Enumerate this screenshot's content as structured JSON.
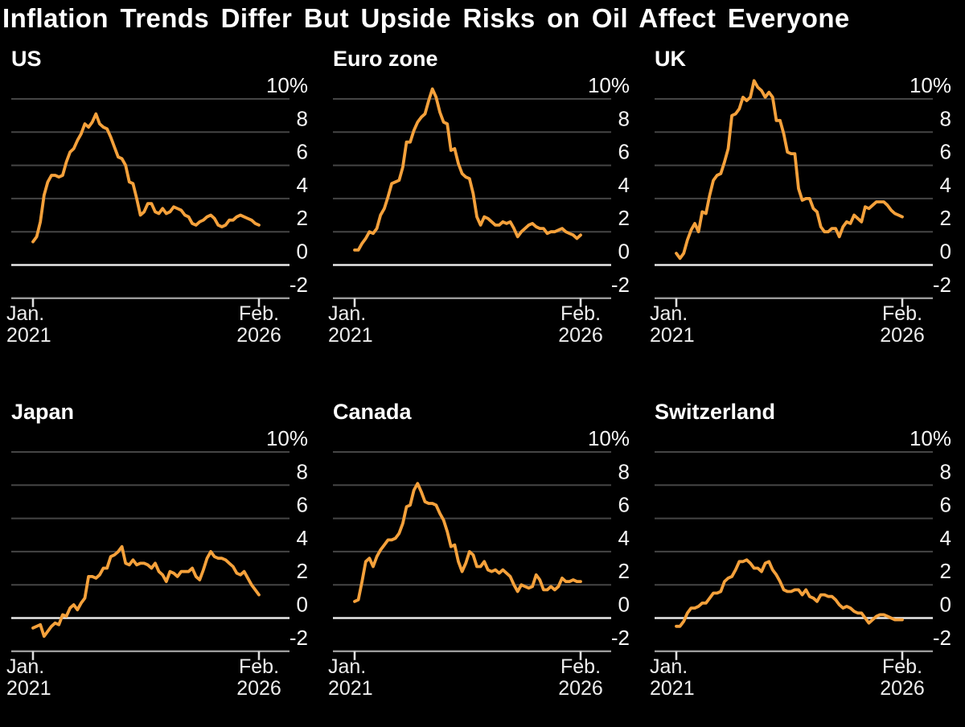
{
  "title": "Inflation Trends Differ But Upside Risks on Oil Affect Everyone",
  "colors": {
    "background": "#000000",
    "text": "#ffffff",
    "line": "#F5A13B",
    "grid": "#454545",
    "zero_line": "#e9e9e9",
    "axis_line": "#9b9b9b",
    "tick": "#e0e0e0"
  },
  "axis": {
    "y_labels": [
      "10%",
      "8",
      "6",
      "4",
      "2",
      "0",
      "-2"
    ],
    "y_values": [
      10,
      8,
      6,
      4,
      2,
      0,
      -2
    ],
    "x_ticks": [
      {
        "line1": "Jan.",
        "line2": "2021"
      },
      {
        "line1": "Feb.",
        "line2": "2026"
      }
    ]
  },
  "chart_data": [
    {
      "type": "line",
      "title": "US",
      "xlabel_start": "Jan. 2021",
      "xlabel_end": "Feb. 2026",
      "ylim": [
        -2,
        10
      ],
      "unit": "%",
      "x_monthly_from": "2021-01",
      "values": [
        1.4,
        1.7,
        2.6,
        4.2,
        5.0,
        5.4,
        5.4,
        5.3,
        5.4,
        6.2,
        6.8,
        7.0,
        7.5,
        7.9,
        8.5,
        8.3,
        8.6,
        9.1,
        8.5,
        8.3,
        8.2,
        7.7,
        7.1,
        6.5,
        6.4,
        6.0,
        5.0,
        4.9,
        4.0,
        3.0,
        3.2,
        3.7,
        3.7,
        3.2,
        3.1,
        3.4,
        3.1,
        3.2,
        3.5,
        3.4,
        3.3,
        3.0,
        2.9,
        2.5,
        2.4,
        2.6,
        2.7,
        2.9,
        3.0,
        2.8,
        2.4,
        2.3,
        2.4,
        2.7,
        2.7,
        2.9,
        3.0,
        2.9,
        2.8,
        2.7,
        2.5,
        2.4
      ]
    },
    {
      "type": "line",
      "title": "Euro zone",
      "xlabel_start": "Jan. 2021",
      "xlabel_end": "Feb. 2026",
      "ylim": [
        -2,
        10
      ],
      "unit": "%",
      "x_monthly_from": "2021-01",
      "values": [
        0.9,
        0.9,
        1.3,
        1.6,
        2.0,
        1.9,
        2.2,
        3.0,
        3.4,
        4.1,
        4.9,
        5.0,
        5.1,
        5.9,
        7.4,
        7.4,
        8.1,
        8.6,
        8.9,
        9.1,
        9.9,
        10.6,
        10.1,
        9.2,
        8.6,
        8.5,
        6.9,
        7.0,
        6.1,
        5.5,
        5.3,
        5.2,
        4.3,
        2.9,
        2.4,
        2.9,
        2.8,
        2.6,
        2.4,
        2.4,
        2.6,
        2.5,
        2.6,
        2.2,
        1.7,
        2.0,
        2.2,
        2.4,
        2.5,
        2.3,
        2.2,
        2.2,
        1.9,
        2.0,
        2.0,
        2.1,
        2.2,
        2.0,
        1.9,
        1.8,
        1.6,
        1.8
      ]
    },
    {
      "type": "line",
      "title": "UK",
      "xlabel_start": "Jan. 2021",
      "xlabel_end": "Feb. 2026",
      "ylim": [
        -2,
        10
      ],
      "unit": "%",
      "x_monthly_from": "2021-01",
      "values": [
        0.7,
        0.4,
        0.7,
        1.5,
        2.1,
        2.5,
        2.0,
        3.2,
        3.1,
        4.2,
        5.1,
        5.4,
        5.5,
        6.2,
        7.0,
        9.0,
        9.1,
        9.4,
        10.1,
        9.9,
        10.1,
        11.1,
        10.7,
        10.5,
        10.1,
        10.4,
        10.1,
        8.7,
        8.7,
        7.9,
        6.8,
        6.7,
        6.7,
        4.6,
        3.9,
        4.0,
        4.0,
        3.4,
        3.2,
        2.3,
        2.0,
        2.0,
        2.2,
        2.2,
        1.7,
        2.3,
        2.6,
        2.5,
        3.0,
        2.8,
        2.6,
        3.5,
        3.4,
        3.6,
        3.8,
        3.8,
        3.8,
        3.6,
        3.3,
        3.1,
        3.0,
        2.9
      ]
    },
    {
      "type": "line",
      "title": "Japan",
      "xlabel_start": "Jan. 2021",
      "xlabel_end": "Feb. 2026",
      "ylim": [
        -2,
        10
      ],
      "unit": "%",
      "x_monthly_from": "2021-01",
      "values": [
        -0.6,
        -0.5,
        -0.4,
        -1.1,
        -0.8,
        -0.5,
        -0.3,
        -0.4,
        0.2,
        0.1,
        0.6,
        0.8,
        0.5,
        0.9,
        1.2,
        2.5,
        2.5,
        2.4,
        2.6,
        3.0,
        3.0,
        3.7,
        3.8,
        4.0,
        4.3,
        3.3,
        3.2,
        3.5,
        3.2,
        3.3,
        3.3,
        3.2,
        3.0,
        3.3,
        2.8,
        2.6,
        2.2,
        2.8,
        2.7,
        2.5,
        2.8,
        2.8,
        2.8,
        3.0,
        2.5,
        2.3,
        2.9,
        3.6,
        4.0,
        3.7,
        3.6,
        3.6,
        3.5,
        3.3,
        3.1,
        2.7,
        2.6,
        2.8,
        2.4,
        2.0,
        1.7,
        1.4
      ]
    },
    {
      "type": "line",
      "title": "Canada",
      "xlabel_start": "Jan. 2021",
      "xlabel_end": "Feb. 2026",
      "ylim": [
        -2,
        10
      ],
      "unit": "%",
      "x_monthly_from": "2021-01",
      "values": [
        1.0,
        1.1,
        2.2,
        3.4,
        3.6,
        3.1,
        3.7,
        4.1,
        4.4,
        4.7,
        4.7,
        4.8,
        5.1,
        5.7,
        6.7,
        6.8,
        7.7,
        8.1,
        7.6,
        7.0,
        6.9,
        6.9,
        6.8,
        6.3,
        5.9,
        5.2,
        4.3,
        4.4,
        3.4,
        2.8,
        3.3,
        4.0,
        3.8,
        3.1,
        3.1,
        3.4,
        2.9,
        2.8,
        2.9,
        2.7,
        2.9,
        2.7,
        2.5,
        2.0,
        1.6,
        2.0,
        1.9,
        1.8,
        1.9,
        2.6,
        2.3,
        1.7,
        1.7,
        1.9,
        1.7,
        1.9,
        2.4,
        2.2,
        2.2,
        2.3,
        2.2,
        2.2
      ]
    },
    {
      "type": "line",
      "title": "Switzerland",
      "xlabel_start": "Jan. 2021",
      "xlabel_end": "Feb. 2026",
      "ylim": [
        -2,
        10
      ],
      "unit": "%",
      "x_monthly_from": "2021-01",
      "values": [
        -0.5,
        -0.5,
        -0.2,
        0.3,
        0.6,
        0.6,
        0.7,
        0.9,
        0.9,
        1.2,
        1.5,
        1.5,
        1.6,
        2.2,
        2.4,
        2.5,
        2.9,
        3.4,
        3.4,
        3.5,
        3.3,
        3.0,
        3.0,
        2.8,
        3.3,
        3.4,
        2.9,
        2.6,
        2.2,
        1.7,
        1.6,
        1.6,
        1.7,
        1.7,
        1.4,
        1.7,
        1.3,
        1.2,
        1.0,
        1.4,
        1.4,
        1.3,
        1.3,
        1.1,
        0.8,
        0.6,
        0.7,
        0.6,
        0.4,
        0.3,
        0.3,
        0.0,
        -0.3,
        -0.1,
        0.1,
        0.2,
        0.2,
        0.1,
        0.0,
        -0.1,
        -0.1,
        -0.1
      ]
    }
  ]
}
